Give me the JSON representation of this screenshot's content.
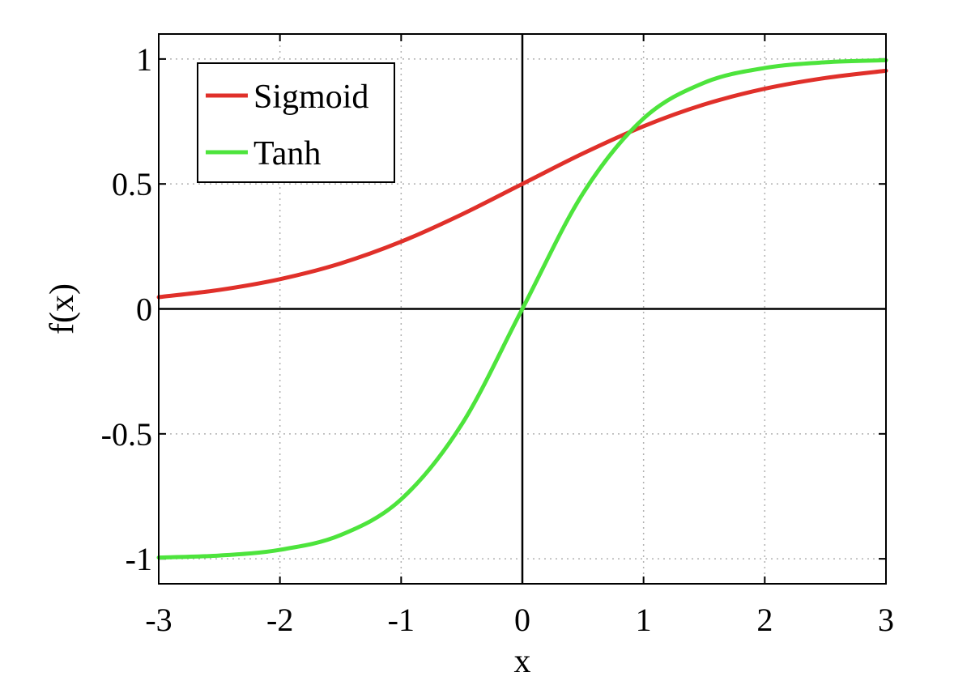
{
  "chart_data": {
    "type": "line",
    "title": "",
    "xlabel": "x",
    "ylabel": "f(x)",
    "xlim": [
      -3,
      3
    ],
    "ylim": [
      -1.1,
      1.1
    ],
    "xticks": [
      -3,
      -2,
      -1,
      0,
      1,
      2,
      3
    ],
    "xtick_labels": [
      "-3",
      "-2",
      "-1",
      "0",
      "1",
      "2",
      "3"
    ],
    "yticks": [
      -1,
      -0.5,
      0,
      0.5,
      1
    ],
    "ytick_labels": [
      "-1",
      "-0.5",
      "0",
      "0.5",
      "1"
    ],
    "grid": true,
    "grid_style": "dotted",
    "zero_lines": true,
    "legend_position": "top-left",
    "x": [
      -3,
      -2.5,
      -2,
      -1.5,
      -1,
      -0.5,
      0,
      0.5,
      1,
      1.5,
      2,
      2.5,
      3
    ],
    "series": [
      {
        "name": "Sigmoid",
        "color": "#e0302a",
        "values": [
          0.047,
          0.076,
          0.119,
          0.182,
          0.269,
          0.378,
          0.5,
          0.622,
          0.731,
          0.818,
          0.881,
          0.924,
          0.953
        ]
      },
      {
        "name": "Tanh",
        "color": "#4de43c",
        "values": [
          -0.995,
          -0.987,
          -0.964,
          -0.905,
          -0.762,
          -0.462,
          0,
          0.462,
          0.762,
          0.905,
          0.964,
          0.987,
          0.995
        ]
      }
    ]
  }
}
